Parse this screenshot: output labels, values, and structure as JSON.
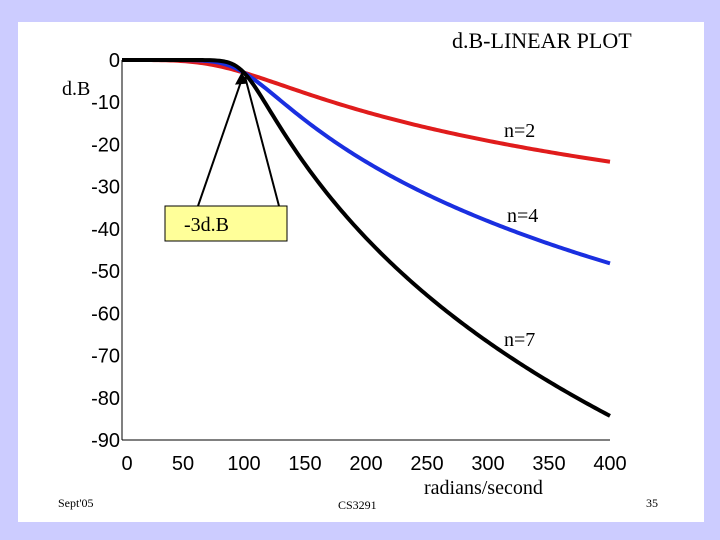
{
  "slide": {
    "title": "d.B-LINEAR PLOT",
    "footer_left": "Sept'05",
    "footer_center": "CS3291",
    "footer_right": "35"
  },
  "colors": {
    "background": "#ccccff",
    "n2": "#e01c1c",
    "n4": "#1a2fe0",
    "n7": "#000000",
    "callout": "#ffff99"
  },
  "chart_data": {
    "type": "line",
    "title": "d.B-LINEAR PLOT",
    "xlabel": "radians/second",
    "ylabel": "d.B",
    "xlim": [
      0,
      400
    ],
    "ylim": [
      -90,
      0
    ],
    "x_ticks": [
      "0",
      "50",
      "100",
      "150",
      "200",
      "250",
      "300",
      "350",
      "400"
    ],
    "y_ticks": [
      "0",
      "-10",
      "-20",
      "-30",
      "-40",
      "-50",
      "-60",
      "-70",
      "-80",
      "-90"
    ],
    "cutoff": 100,
    "series": [
      {
        "name": "n=2",
        "order": 2
      },
      {
        "name": "n=4",
        "order": 4
      },
      {
        "name": "n=7",
        "order": 7
      }
    ],
    "annotation": {
      "label": "-3d.B",
      "x": 100,
      "y": -3
    }
  }
}
